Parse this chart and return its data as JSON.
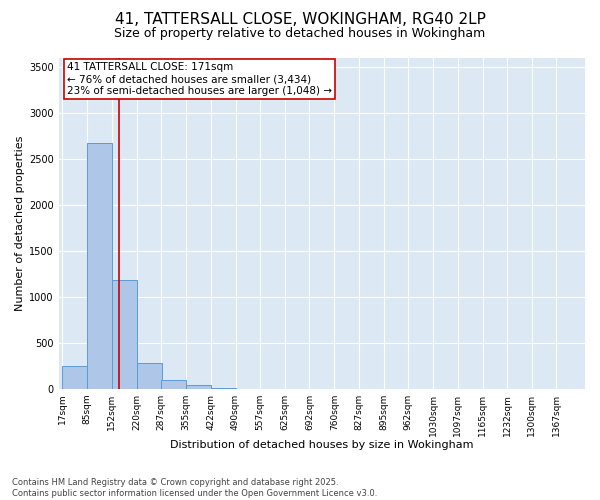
{
  "title1": "41, TATTERSALL CLOSE, WOKINGHAM, RG40 2LP",
  "title2": "Size of property relative to detached houses in Wokingham",
  "xlabel": "Distribution of detached houses by size in Wokingham",
  "ylabel": "Number of detached properties",
  "bin_edges": [
    17,
    85,
    152,
    220,
    287,
    355,
    422,
    490,
    557,
    625,
    692,
    760,
    827,
    895,
    962,
    1030,
    1097,
    1165,
    1232,
    1300,
    1367
  ],
  "bar_heights": [
    250,
    2670,
    1180,
    280,
    100,
    40,
    10,
    0,
    0,
    0,
    0,
    0,
    0,
    0,
    0,
    0,
    0,
    0,
    0,
    0
  ],
  "bar_color": "#aec6e8",
  "bar_edge_color": "#5b9bd5",
  "property_size": 171,
  "vline_color": "#cc0000",
  "annotation_title": "41 TATTERSALL CLOSE: 171sqm",
  "annotation_line1": "← 76% of detached houses are smaller (3,434)",
  "annotation_line2": "23% of semi-detached houses are larger (1,048) →",
  "annotation_box_color": "#cc0000",
  "ylim": [
    0,
    3600
  ],
  "yticks": [
    0,
    500,
    1000,
    1500,
    2000,
    2500,
    3000,
    3500
  ],
  "footer1": "Contains HM Land Registry data © Crown copyright and database right 2025.",
  "footer2": "Contains public sector information licensed under the Open Government Licence v3.0.",
  "plot_bg_color": "#dce9f5",
  "fig_bg_color": "#ffffff",
  "title1_fontsize": 11,
  "title2_fontsize": 9,
  "ylabel_fontsize": 8,
  "xlabel_fontsize": 8,
  "tick_label_fontsize": 6.5,
  "footer_fontsize": 6,
  "annot_fontsize": 7.5
}
